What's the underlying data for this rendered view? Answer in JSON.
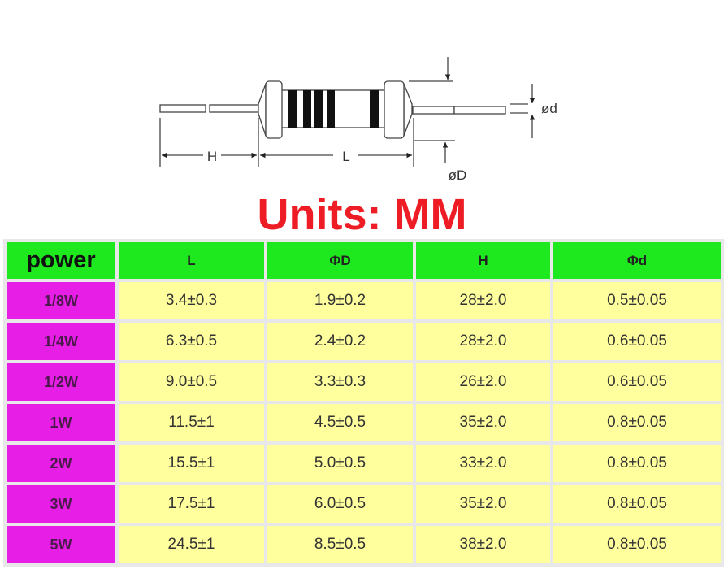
{
  "diagram": {
    "labels": {
      "H": "H",
      "L": "L",
      "D": "øD",
      "d": "ød"
    }
  },
  "title": "Units: MM",
  "colors": {
    "title": "#ee1c25",
    "header": "#1ee81e",
    "power_cell": "#e61ee6",
    "value_cell": "#ffff9e"
  },
  "table": {
    "headers": [
      "power",
      "L",
      "ΦD",
      "H",
      "Φd"
    ],
    "rows": [
      [
        "1/8W",
        "3.4±0.3",
        "1.9±0.2",
        "28±2.0",
        "0.5±0.05"
      ],
      [
        "1/4W",
        "6.3±0.5",
        "2.4±0.2",
        "28±2.0",
        "0.6±0.05"
      ],
      [
        "1/2W",
        "9.0±0.5",
        "3.3±0.3",
        "26±2.0",
        "0.6±0.05"
      ],
      [
        "1W",
        "11.5±1",
        "4.5±0.5",
        "35±2.0",
        "0.8±0.05"
      ],
      [
        "2W",
        "15.5±1",
        "5.0±0.5",
        "33±2.0",
        "0.8±0.05"
      ],
      [
        "3W",
        "17.5±1",
        "6.0±0.5",
        "35±2.0",
        "0.8±0.05"
      ],
      [
        "5W",
        "24.5±1",
        "8.5±0.5",
        "38±2.0",
        "0.8±0.05"
      ]
    ]
  }
}
